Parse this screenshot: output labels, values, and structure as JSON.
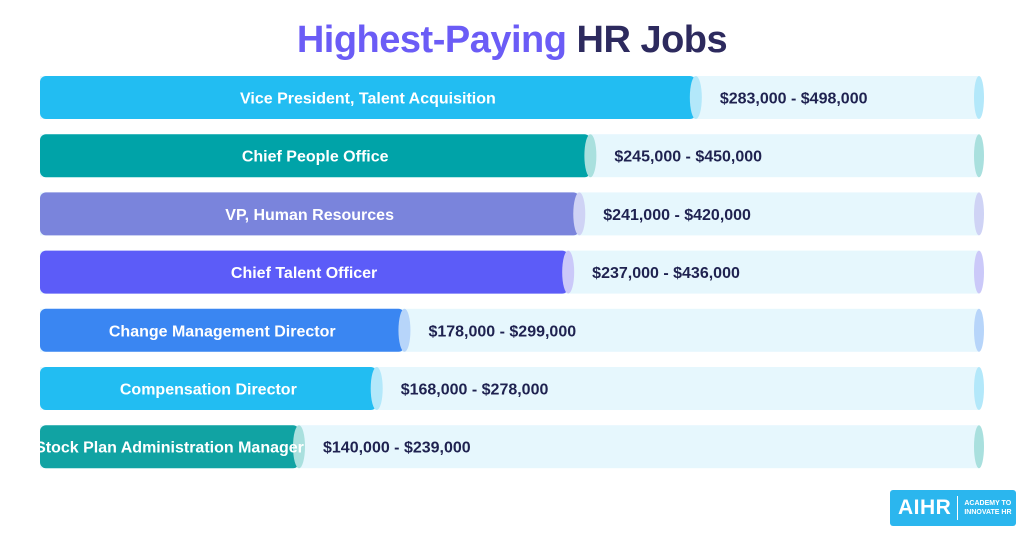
{
  "title": {
    "part1": "Highest-Paying",
    "part2": "HR Jobs"
  },
  "colors": {
    "title_accent": "#6b5cf6",
    "title_dark": "#2d2a5e",
    "label_text": "#ffffff",
    "range_text": "#1f2250",
    "track": "#e6f7fd",
    "logo_bg": "#2bb6ee"
  },
  "chart_data": {
    "type": "bar",
    "orientation": "horizontal",
    "categories": [
      "Vice President, Talent Acquisition",
      "Chief People Office",
      "VP, Human Resources",
      "Chief Talent Officer",
      "Change Management Director",
      "Compensation Director",
      "Stock Plan Administration Manager"
    ],
    "ranges": [
      "$283,000 - $498,000",
      "$245,000 - $450,000",
      "$241,000 - $420,000",
      "$237,000 - $436,000",
      "$178,000 - $299,000",
      "$168,000 - $278,000",
      "$140,000 - $239,000"
    ],
    "values": [
      283000,
      245000,
      241000,
      237000,
      178000,
      168000,
      140000
    ],
    "bar_colors": [
      "#22bdf2",
      "#00a3a8",
      "#7a84dc",
      "#5c5cf8",
      "#3a86f2",
      "#22bdf2",
      "#11a3a3"
    ],
    "cap_colors": [
      "#b3e8fa",
      "#a9e0de",
      "#cfd3f5",
      "#cbc9f9",
      "#b7d5fa",
      "#b3e8fa",
      "#a9e0de"
    ],
    "grid": false
  },
  "logo": {
    "mark": "AIHR",
    "line1": "ACADEMY TO",
    "line2": "INNOVATE HR"
  }
}
